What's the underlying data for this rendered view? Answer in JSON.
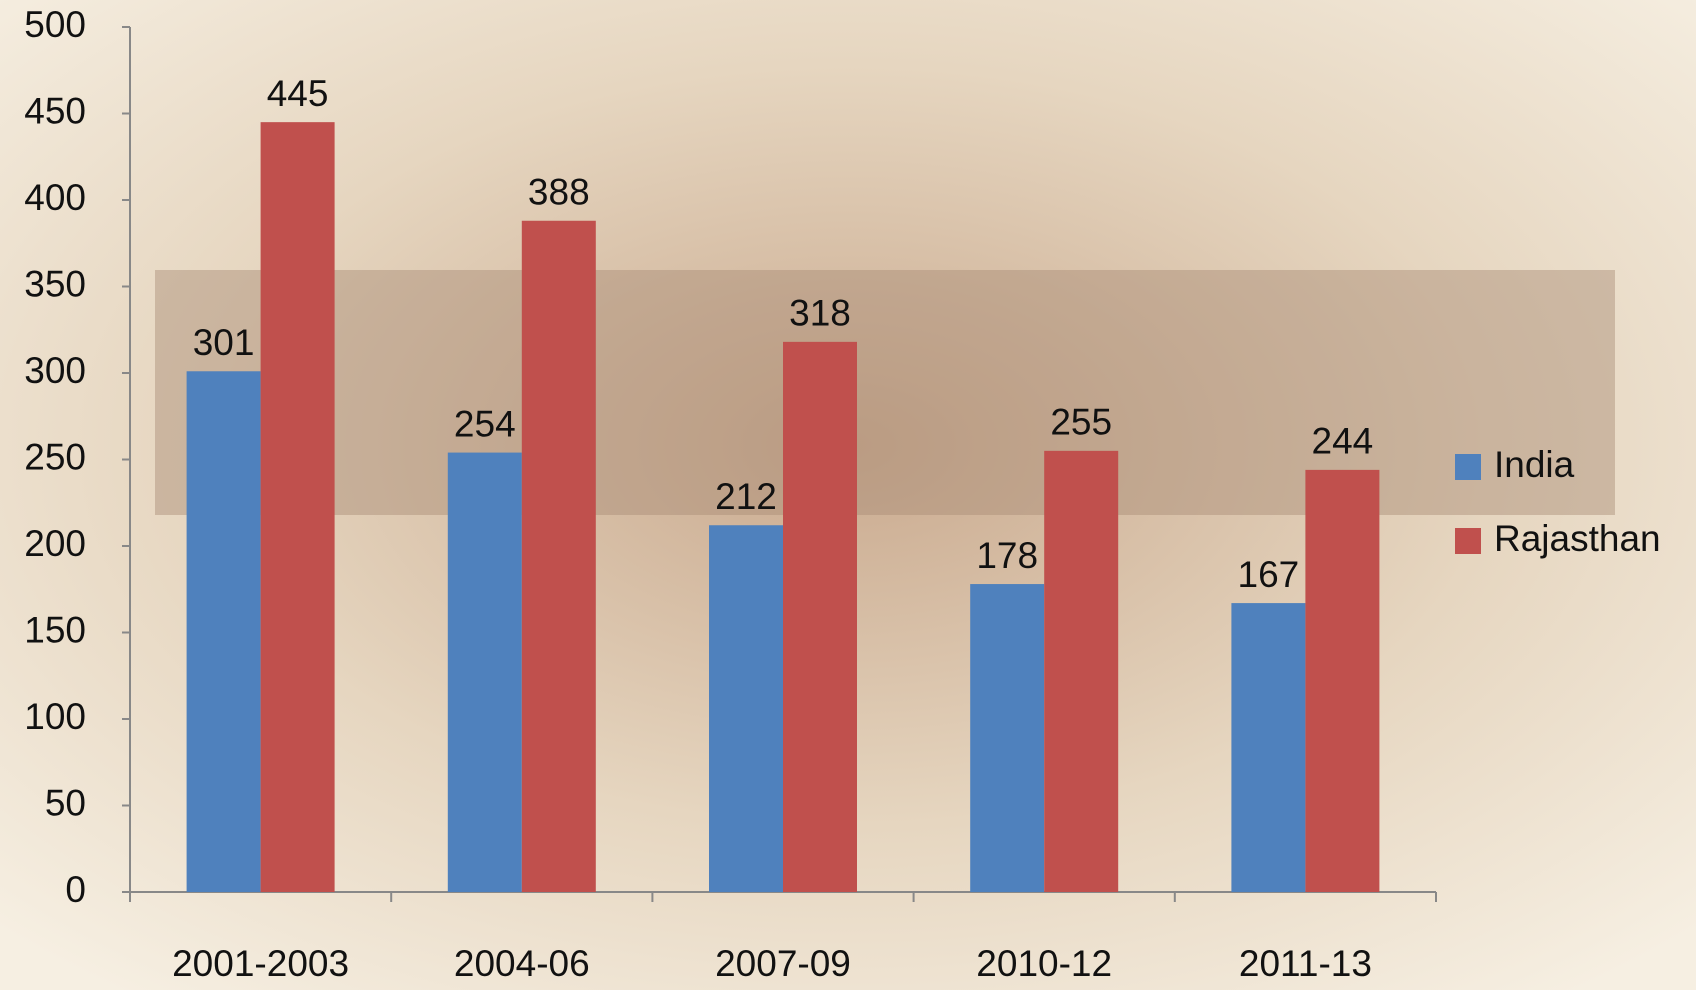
{
  "chart_data": {
    "type": "bar",
    "categories": [
      "2001-2003",
      "2004-06",
      "2007-09",
      "2010-12",
      "2011-13"
    ],
    "series": [
      {
        "name": "India",
        "color": "#4f81bd",
        "values": [
          301,
          254,
          212,
          178,
          167
        ]
      },
      {
        "name": "Rajasthan",
        "color": "#c0504d",
        "values": [
          445,
          388,
          318,
          255,
          244
        ]
      }
    ],
    "ylim": [
      0,
      500
    ],
    "yticks": [
      0,
      50,
      100,
      150,
      200,
      250,
      300,
      350,
      400,
      450,
      500
    ],
    "legend": "right"
  }
}
